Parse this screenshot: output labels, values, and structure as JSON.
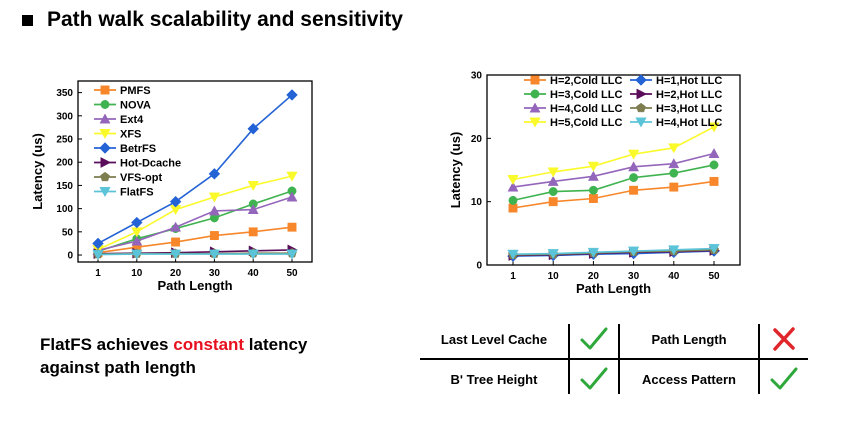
{
  "page_title": "Path walk scalability and sensitivity",
  "message": {
    "prefix": "FlatFS achieves ",
    "highlight": "constant",
    "suffix": " latency",
    "line2": "against path length"
  },
  "colors": {
    "highlight": "#e8101e",
    "check": "#2ea83a",
    "cross": "#e0262b"
  },
  "comparison": {
    "rows": [
      {
        "left_label": "Last Level Cache",
        "left_mark": "check-icon",
        "right_label": "Path Length",
        "right_mark": "cross-icon"
      },
      {
        "left_label": "Bʹ Tree Height",
        "left_mark": "check-icon",
        "right_label": "Access Pattern",
        "right_mark": "check-icon"
      }
    ]
  },
  "chart_data": [
    {
      "type": "line",
      "title": "",
      "xlabel": "Path Length",
      "ylabel": "Latency (us)",
      "categories": [
        "1",
        "10",
        "20",
        "30",
        "40",
        "50"
      ],
      "ylim": [
        -15,
        375
      ],
      "yticks": [
        0,
        50,
        100,
        150,
        200,
        250,
        300,
        350
      ],
      "grid": false,
      "legend": "top-left",
      "series": [
        {
          "name": "PMFS",
          "color": "#f7872a",
          "marker": "square",
          "values": [
            5,
            17,
            28,
            42,
            50,
            60
          ]
        },
        {
          "name": "NOVA",
          "color": "#3fb34f",
          "marker": "circle",
          "values": [
            8,
            35,
            57,
            80,
            110,
            138
          ]
        },
        {
          "name": "Ext4",
          "color": "#9466bb",
          "marker": "triangle-up",
          "values": [
            10,
            30,
            60,
            95,
            98,
            125
          ]
        },
        {
          "name": "XFS",
          "color": "#fafa2a",
          "marker": "triangle-down",
          "values": [
            12,
            50,
            98,
            125,
            150,
            170
          ]
        },
        {
          "name": "BetrFS",
          "color": "#2463d6",
          "marker": "diamond",
          "values": [
            25,
            70,
            115,
            175,
            272,
            345
          ]
        },
        {
          "name": "Hot-Dcache",
          "color": "#5a0d5a",
          "marker": "triangle-right",
          "values": [
            3,
            4,
            5,
            7,
            9,
            11
          ]
        },
        {
          "name": "VFS-opt",
          "color": "#7d7d4f",
          "marker": "pentagon",
          "values": [
            2,
            3,
            3,
            3,
            4,
            4
          ]
        },
        {
          "name": "FlatFS",
          "color": "#5bc4d8",
          "marker": "triangle-down",
          "values": [
            1,
            2,
            2,
            2,
            2,
            2
          ]
        }
      ]
    },
    {
      "type": "line",
      "title": "",
      "xlabel": "Path Length",
      "ylabel": "Latency (us)",
      "categories": [
        "1",
        "10",
        "20",
        "30",
        "40",
        "50"
      ],
      "ylim": [
        0,
        30
      ],
      "yticks": [
        0,
        10,
        20,
        30
      ],
      "grid": false,
      "legend": "top",
      "series": [
        {
          "name": "H=2,Cold LLC",
          "color": "#f7872a",
          "marker": "square",
          "values": [
            9.0,
            10.0,
            10.5,
            11.8,
            12.3,
            13.2
          ]
        },
        {
          "name": "H=3,Cold LLC",
          "color": "#3fb34f",
          "marker": "circle",
          "values": [
            10.2,
            11.6,
            11.8,
            13.8,
            14.5,
            15.8
          ]
        },
        {
          "name": "H=4,Cold LLC",
          "color": "#9466bb",
          "marker": "triangle-up",
          "values": [
            12.3,
            13.2,
            14.0,
            15.5,
            16.0,
            17.6
          ]
        },
        {
          "name": "H=5,Cold LLC",
          "color": "#fafa2a",
          "marker": "triangle-down",
          "values": [
            13.5,
            14.7,
            15.6,
            17.5,
            18.5,
            21.8
          ]
        },
        {
          "name": "H=1,Hot LLC",
          "color": "#2463d6",
          "marker": "diamond",
          "values": [
            1.4,
            1.5,
            1.7,
            1.8,
            2.0,
            2.2
          ]
        },
        {
          "name": "H=2,Hot LLC",
          "color": "#5a0d5a",
          "marker": "triangle-right",
          "values": [
            1.5,
            1.6,
            1.8,
            2.0,
            2.1,
            2.3
          ]
        },
        {
          "name": "H=3,Hot LLC",
          "color": "#7d7d4f",
          "marker": "pentagon",
          "values": [
            1.6,
            1.7,
            1.9,
            2.1,
            2.2,
            2.4
          ]
        },
        {
          "name": "H=4,Hot LLC",
          "color": "#5bc4d8",
          "marker": "triangle-down",
          "values": [
            1.7,
            1.8,
            2.0,
            2.2,
            2.4,
            2.6
          ]
        }
      ]
    }
  ]
}
